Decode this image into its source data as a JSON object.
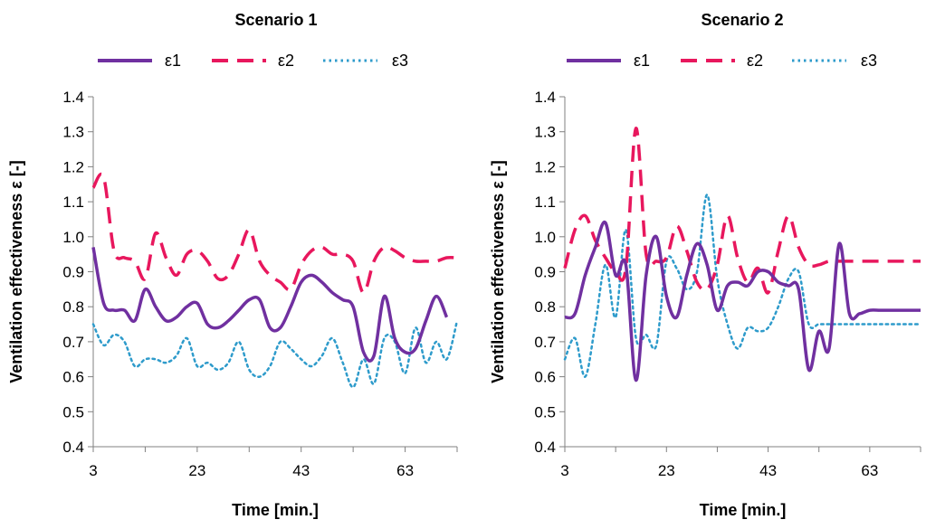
{
  "chart_data": [
    {
      "type": "line",
      "title": "Scenario 1",
      "xlabel": "Time [min.]",
      "ylabel": "Ventilation effectiveness ε [-]",
      "xlim": [
        3,
        73
      ],
      "ylim": [
        0.4,
        1.4
      ],
      "xticks": [
        "3",
        "23",
        "43",
        "63"
      ],
      "yticks": [
        "0.4",
        "0.5",
        "0.6",
        "0.7",
        "0.8",
        "0.9",
        "1.0",
        "1.1",
        "1.2",
        "1.3",
        "1.4"
      ],
      "grid": false,
      "legend": "top",
      "series": [
        {
          "name": "ε1",
          "color": "#7030A0",
          "style": "solid",
          "x": [
            3,
            5,
            7,
            9,
            11,
            13,
            15,
            17,
            19,
            21,
            23,
            25,
            27,
            29,
            31,
            33,
            35,
            37,
            39,
            41,
            43,
            45,
            47,
            49,
            51,
            53,
            55,
            57,
            59,
            61,
            63,
            65,
            67,
            69,
            71
          ],
          "y": [
            0.97,
            0.81,
            0.79,
            0.79,
            0.76,
            0.85,
            0.8,
            0.76,
            0.77,
            0.8,
            0.81,
            0.75,
            0.74,
            0.76,
            0.79,
            0.82,
            0.82,
            0.74,
            0.74,
            0.8,
            0.87,
            0.89,
            0.87,
            0.84,
            0.82,
            0.8,
            0.67,
            0.66,
            0.83,
            0.71,
            0.67,
            0.68,
            0.76,
            0.83,
            0.77
          ]
        },
        {
          "name": "ε2",
          "color": "#E8175D",
          "style": "dashed",
          "x": [
            3,
            5,
            7,
            9,
            11,
            13,
            15,
            17,
            19,
            21,
            23,
            25,
            27,
            29,
            31,
            33,
            35,
            37,
            39,
            41,
            43,
            45,
            47,
            49,
            51,
            53,
            55,
            57,
            59,
            61,
            63,
            65,
            67,
            69,
            71,
            73
          ],
          "y": [
            1.14,
            1.17,
            0.96,
            0.94,
            0.93,
            0.88,
            1.01,
            0.94,
            0.89,
            0.95,
            0.96,
            0.93,
            0.88,
            0.89,
            0.95,
            1.02,
            0.93,
            0.89,
            0.87,
            0.85,
            0.92,
            0.96,
            0.97,
            0.95,
            0.95,
            0.93,
            0.84,
            0.93,
            0.97,
            0.96,
            0.94,
            0.93,
            0.93,
            0.93,
            0.94,
            0.94
          ]
        },
        {
          "name": "ε3",
          "color": "#2E9BCB",
          "style": "dotted",
          "x": [
            3,
            5,
            7,
            9,
            11,
            13,
            15,
            17,
            19,
            21,
            23,
            25,
            27,
            29,
            31,
            33,
            35,
            37,
            39,
            41,
            43,
            45,
            47,
            49,
            51,
            53,
            55,
            57,
            59,
            61,
            63,
            65,
            67,
            69,
            71,
            73
          ],
          "y": [
            0.75,
            0.69,
            0.72,
            0.7,
            0.63,
            0.65,
            0.65,
            0.64,
            0.66,
            0.71,
            0.63,
            0.64,
            0.62,
            0.64,
            0.7,
            0.62,
            0.6,
            0.63,
            0.7,
            0.68,
            0.65,
            0.63,
            0.66,
            0.71,
            0.64,
            0.57,
            0.65,
            0.58,
            0.71,
            0.7,
            0.61,
            0.74,
            0.64,
            0.7,
            0.65,
            0.76
          ]
        }
      ]
    },
    {
      "type": "line",
      "title": "Scenario 2",
      "xlabel": "Time [min.]",
      "ylabel": "Ventilation effectiveness ε [-]",
      "xlim": [
        3,
        73
      ],
      "ylim": [
        0.4,
        1.4
      ],
      "xticks": [
        "3",
        "23",
        "43",
        "63"
      ],
      "yticks": [
        "0.4",
        "0.5",
        "0.6",
        "0.7",
        "0.8",
        "0.9",
        "1.0",
        "1.1",
        "1.2",
        "1.3",
        "1.4"
      ],
      "grid": false,
      "legend": "top",
      "series": [
        {
          "name": "ε1",
          "color": "#7030A0",
          "style": "solid",
          "x": [
            3,
            5,
            7,
            9,
            11,
            13,
            15,
            17,
            19,
            21,
            23,
            25,
            27,
            29,
            31,
            33,
            35,
            37,
            39,
            41,
            43,
            45,
            47,
            49,
            51,
            53,
            55,
            57,
            59,
            61,
            63,
            65,
            67,
            69,
            71,
            73
          ],
          "y": [
            0.77,
            0.78,
            0.89,
            0.97,
            1.04,
            0.89,
            0.92,
            0.59,
            0.89,
            1.0,
            0.83,
            0.77,
            0.89,
            0.98,
            0.92,
            0.79,
            0.86,
            0.87,
            0.86,
            0.9,
            0.9,
            0.87,
            0.86,
            0.85,
            0.62,
            0.73,
            0.68,
            0.98,
            0.78,
            0.78,
            0.79,
            0.79,
            0.79,
            0.79,
            0.79,
            0.79
          ]
        },
        {
          "name": "ε2",
          "color": "#E8175D",
          "style": "dashed",
          "x": [
            3,
            5,
            7,
            9,
            11,
            13,
            15,
            17,
            19,
            21,
            23,
            25,
            27,
            29,
            31,
            33,
            35,
            37,
            39,
            41,
            43,
            45,
            47,
            49,
            51,
            53,
            55,
            57,
            59,
            61,
            63,
            65,
            67,
            69,
            71,
            73
          ],
          "y": [
            0.91,
            1.02,
            1.06,
            0.99,
            0.94,
            0.9,
            0.91,
            1.31,
            0.95,
            0.93,
            0.94,
            1.03,
            0.96,
            0.87,
            0.85,
            0.92,
            1.06,
            0.94,
            0.87,
            0.91,
            0.84,
            0.96,
            1.06,
            0.97,
            0.92,
            0.92,
            0.93,
            0.93,
            0.93,
            0.93,
            0.93,
            0.93,
            0.93,
            0.93,
            0.93,
            0.93
          ]
        },
        {
          "name": "ε3",
          "color": "#2E9BCB",
          "style": "dotted",
          "x": [
            3,
            5,
            7,
            9,
            11,
            13,
            15,
            17,
            19,
            21,
            23,
            25,
            27,
            29,
            31,
            33,
            35,
            37,
            39,
            41,
            43,
            45,
            47,
            49,
            51,
            53,
            55,
            57,
            59,
            61,
            63,
            65,
            67,
            69,
            71,
            73
          ],
          "y": [
            0.65,
            0.71,
            0.6,
            0.75,
            0.92,
            0.77,
            1.02,
            0.71,
            0.72,
            0.69,
            0.93,
            0.91,
            0.85,
            0.9,
            1.12,
            0.88,
            0.75,
            0.68,
            0.74,
            0.73,
            0.74,
            0.8,
            0.88,
            0.9,
            0.75,
            0.75,
            0.75,
            0.75,
            0.75,
            0.75,
            0.75,
            0.75,
            0.75,
            0.75,
            0.75,
            0.75
          ]
        }
      ]
    }
  ]
}
